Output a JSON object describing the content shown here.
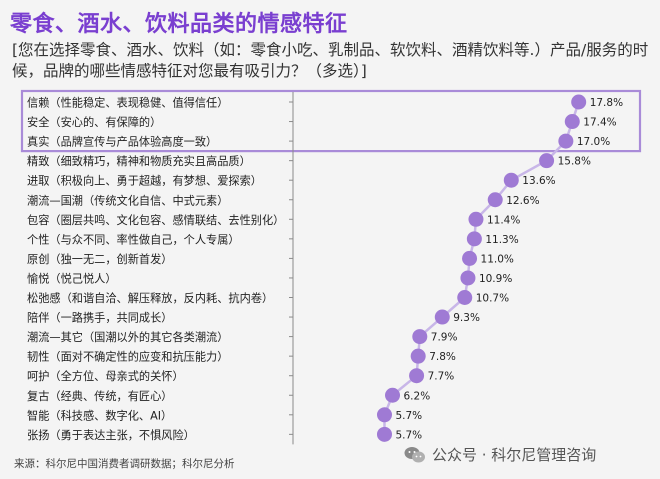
{
  "title": "零食、酒水、饮料品类的情感特征",
  "subtitle": "[您在选择零食、酒水、饮料（如：零食小吃、乳制品、软饮料、酒精饮料等.）产品/服务的时候，品牌的哪些情感特征对您最有吸引力？（多选）]",
  "source": "来源：科尔尼中国消费者调研数据；科尔尼分析",
  "watermark": "公众号 · 科尔尼管理咨询",
  "colors": {
    "title": "#7a3fd0",
    "marker": "#9f7ad4",
    "line": "#c8b6e8",
    "highlight_border": "#a98bd8"
  },
  "chart_data": {
    "type": "line",
    "orientation": "vertical-dot-plot",
    "categories": [
      "信赖（性能稳定、表现稳健、值得信任）",
      "安全（安心的、有保障的）",
      "真实（品牌宣传与产品体验高度一致）",
      "精致（细致精巧，精神和物质充实且高品质）",
      "进取（积极向上、勇于超越，有梦想、爱探索）",
      "潮流—国潮（传统文化自信、中式元素）",
      "包容（圈层共鸣、文化包容、感情联结、去性别化）",
      "个性（与众不同、率性做自己，个人专属）",
      "原创（独一无二，创新首发）",
      "愉悦（悦己悦人）",
      "松弛感（和谐自洽、解压释放，反内耗、抗内卷）",
      "陪伴（一路携手，共同成长）",
      "潮流—其它（国潮以外的其它各类潮流）",
      "韧性（面对不确定性的应变和抗压能力）",
      "呵护（全方位、母亲式的关怀）",
      "复古（经典、传统，有匠心）",
      "智能（科技感、数字化、AI）",
      "张扬（勇于表达主张，不惧风险）"
    ],
    "values": [
      17.8,
      17.4,
      17.0,
      15.8,
      13.6,
      12.6,
      11.4,
      11.3,
      11.0,
      10.9,
      10.7,
      9.3,
      7.9,
      7.8,
      7.7,
      6.2,
      5.7,
      5.7
    ],
    "labels": [
      "17.8%",
      "17.4%",
      "17.0%",
      "15.8%",
      "13.6%",
      "12.6%",
      "11.4%",
      "11.3%",
      "11.0%",
      "10.9%",
      "10.7%",
      "9.3%",
      "7.9%",
      "7.8%",
      "7.7%",
      "6.2%",
      "5.7%",
      "5.7%"
    ],
    "highlighted": [
      0,
      1,
      2
    ],
    "xlim": [
      0,
      20
    ],
    "unit": "%",
    "grid": false,
    "legend": "none"
  }
}
